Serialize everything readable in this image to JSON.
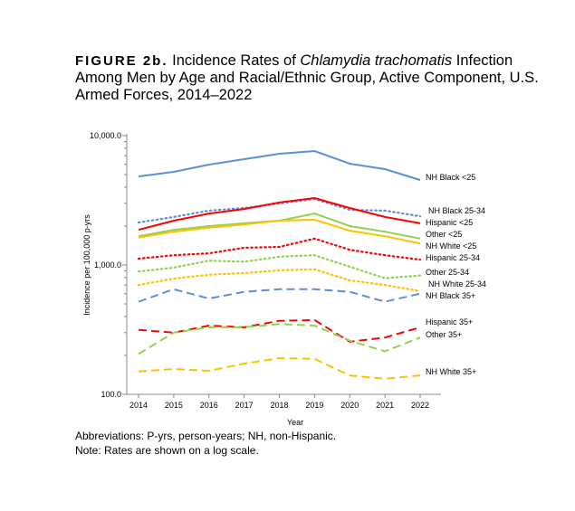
{
  "title": {
    "figure_label": "FIGURE 2b.",
    "text_before": "Incidence Rates of",
    "italic": "Chlamydia trachomatis",
    "text_after": "Infection Among Men by Age and Racial/Ethnic Group, Active Component, U.S. Armed Forces, 2014–2022"
  },
  "notes": [
    "Abbreviations: P-yrs, person-years; NH, non-Hispanic.",
    "Note: Rates are shown on a log scale."
  ],
  "chart_data": {
    "type": "line",
    "xlabel": "Year",
    "ylabel": "Incidence per 100,000 p-yrs",
    "yscale": "log",
    "ylim": [
      100,
      10000
    ],
    "yticks": [
      {
        "value": 10000,
        "label": "10,000.0"
      },
      {
        "value": 1000,
        "label": "1,000.0"
      },
      {
        "value": 100,
        "label": "100.0"
      }
    ],
    "x": [
      2014,
      2015,
      2016,
      2017,
      2018,
      2019,
      2020,
      2021,
      2022
    ],
    "legend": "direct labels at line ends (right)",
    "grid": false,
    "series": [
      {
        "name": "NH Black <25",
        "color": "#5b8fd9",
        "style": "solid",
        "values": [
          4840,
          5250,
          5970,
          6580,
          7250,
          7600,
          6070,
          5510,
          4540
        ]
      },
      {
        "name": "NH Black 25-34",
        "color": "#5b8fd9",
        "style": "dotted",
        "values": [
          2130,
          2350,
          2630,
          2760,
          2990,
          3240,
          2670,
          2630,
          2380
        ]
      },
      {
        "name": "Hispanic <25",
        "color": "#ff0000",
        "style": "solid",
        "values": [
          1870,
          2200,
          2500,
          2710,
          3040,
          3290,
          2760,
          2350,
          2100
        ]
      },
      {
        "name": "Other <25",
        "color": "#92d050",
        "style": "solid",
        "values": [
          1670,
          1870,
          2000,
          2100,
          2200,
          2500,
          2000,
          1810,
          1600
        ]
      },
      {
        "name": "NH White <25",
        "color": "#ffc000",
        "style": "solid",
        "values": [
          1630,
          1810,
          1940,
          2060,
          2200,
          2240,
          1840,
          1670,
          1470
        ]
      },
      {
        "name": "Hispanic 25-34",
        "color": "#ff0000",
        "style": "dotted",
        "values": [
          1120,
          1190,
          1230,
          1360,
          1380,
          1600,
          1310,
          1190,
          1100
        ]
      },
      {
        "name": "Other 25-34",
        "color": "#92d050",
        "style": "dotted",
        "values": [
          890,
          955,
          1080,
          1060,
          1160,
          1190,
          970,
          790,
          830
        ]
      },
      {
        "name": "NH White 25-34",
        "color": "#ffc000",
        "style": "dotted",
        "values": [
          700,
          785,
          840,
          865,
          910,
          925,
          760,
          700,
          630
        ]
      },
      {
        "name": "NH Black 35+",
        "color": "#5b8fd9",
        "style": "dashed",
        "values": [
          520,
          650,
          550,
          620,
          650,
          650,
          620,
          520,
          600
        ]
      },
      {
        "name": "Hispanic 35+",
        "color": "#ff0000",
        "style": "dashed",
        "values": [
          315,
          300,
          340,
          330,
          370,
          375,
          255,
          275,
          330
        ]
      },
      {
        "name": "Other 35+",
        "color": "#92d050",
        "style": "dashed",
        "values": [
          205,
          300,
          330,
          330,
          350,
          340,
          260,
          215,
          275
        ]
      },
      {
        "name": "NH White 35+",
        "color": "#ffc000",
        "style": "dashed",
        "values": [
          150,
          157,
          152,
          173,
          190,
          188,
          140,
          132,
          140
        ]
      }
    ]
  }
}
